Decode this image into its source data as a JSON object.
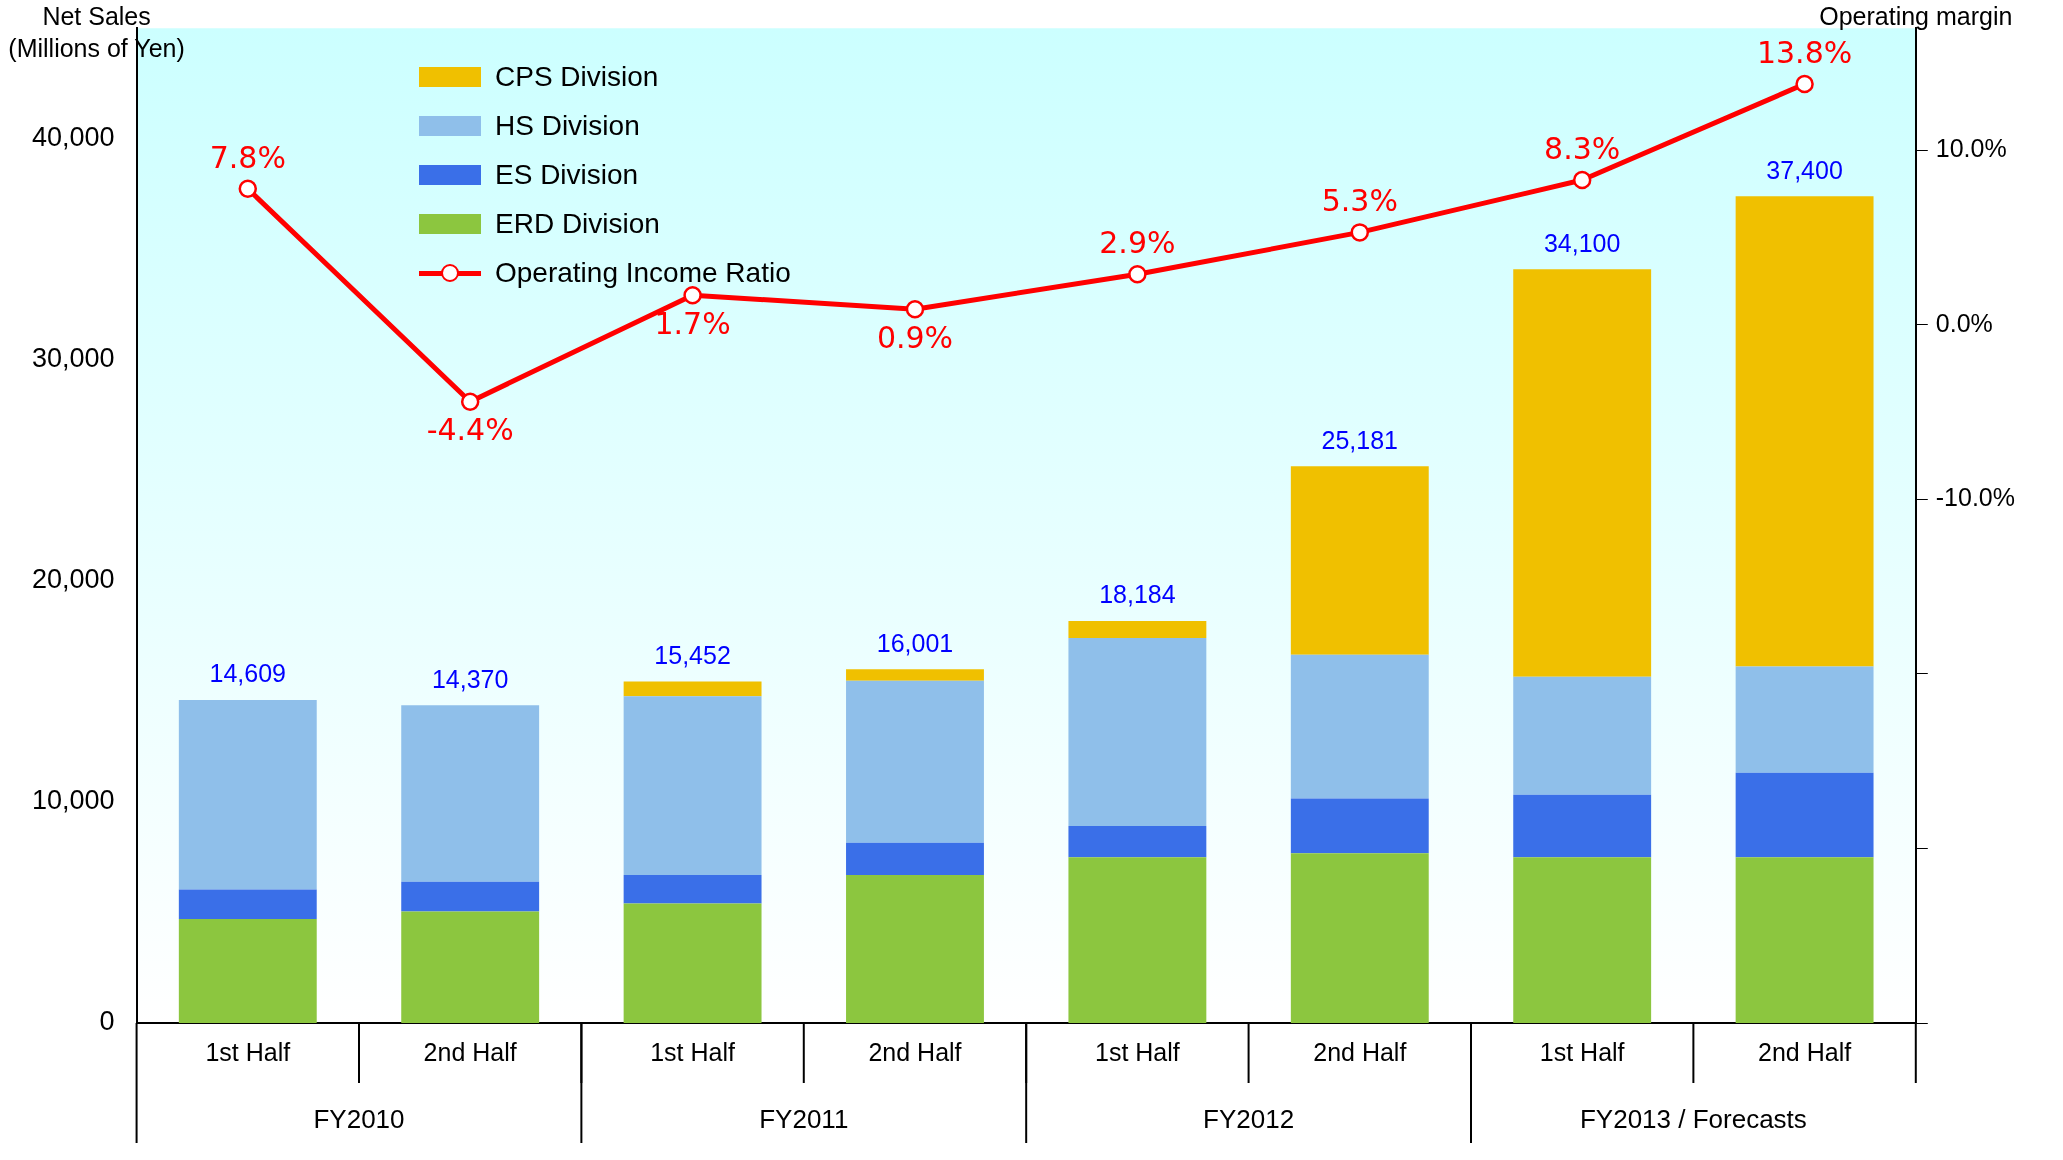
{
  "chart_data": {
    "type": "bar",
    "stacked": true,
    "ylabel": "Net Sales\n(Millions of Yen)",
    "y2label": "Operating margin",
    "categories": [
      "1st Half",
      "2nd Half",
      "1st Half",
      "2nd Half",
      "1st Half",
      "2nd Half",
      "1st Half",
      "2nd Half"
    ],
    "annotations": [
      "FY2010",
      "FY2011",
      "FY2012",
      "FY2013 / Forecasts"
    ],
    "series": [
      {
        "name": "ERD Division",
        "color": "#8cc63f",
        "values": [
          4700,
          5040,
          5400,
          6690,
          7500,
          7680,
          7500,
          7500
        ]
      },
      {
        "name": "ES Division",
        "color": "#3a6fe8",
        "values": [
          1340,
          1350,
          1290,
          1460,
          1410,
          2470,
          2820,
          3820
        ]
      },
      {
        "name": "HS Division",
        "color": "#8fbfea",
        "values": [
          8569,
          7980,
          8092,
          7331,
          8504,
          6511,
          5340,
          4810
        ]
      },
      {
        "name": "CPS Division",
        "color": "#f0c000",
        "values": [
          0,
          0,
          670,
          520,
          770,
          8520,
          18440,
          21270
        ]
      },
      {
        "name": "Operating Income Ratio",
        "type": "line",
        "axis": "y2",
        "color": "#ff0000",
        "values": [
          7.8,
          -4.4,
          1.7,
          0.9,
          2.9,
          5.3,
          8.3,
          13.8
        ],
        "value_labels": [
          "7.8%",
          "-4.4%",
          "1.7%",
          "0.9%",
          "2.9%",
          "5.3%",
          "8.3%",
          "13.8%"
        ]
      }
    ],
    "totals": [
      "14,609",
      "14,370",
      "15,452",
      "16,001",
      "18,184",
      "25,181",
      "34,100",
      "37,400"
    ],
    "ylim": [
      0,
      45000
    ],
    "yticks": [
      {
        "value": 0,
        "label": "0"
      },
      {
        "value": 10000,
        "label": "10,000"
      },
      {
        "value": 20000,
        "label": "20,000"
      },
      {
        "value": 30000,
        "label": "30,000"
      },
      {
        "value": 40000,
        "label": "40,000"
      }
    ],
    "y2lim": [
      -40,
      17
    ],
    "y2ticks": [
      {
        "value": 10,
        "label": "10.0%"
      },
      {
        "value": 0,
        "label": "0.0%"
      },
      {
        "value": -10,
        "label": "-10.0%"
      },
      {
        "value": -20,
        "label": null
      },
      {
        "value": -30,
        "label": null
      },
      {
        "value": -40,
        "label": null
      }
    ],
    "marker": "circle",
    "legend": "top left",
    "grid": false
  }
}
